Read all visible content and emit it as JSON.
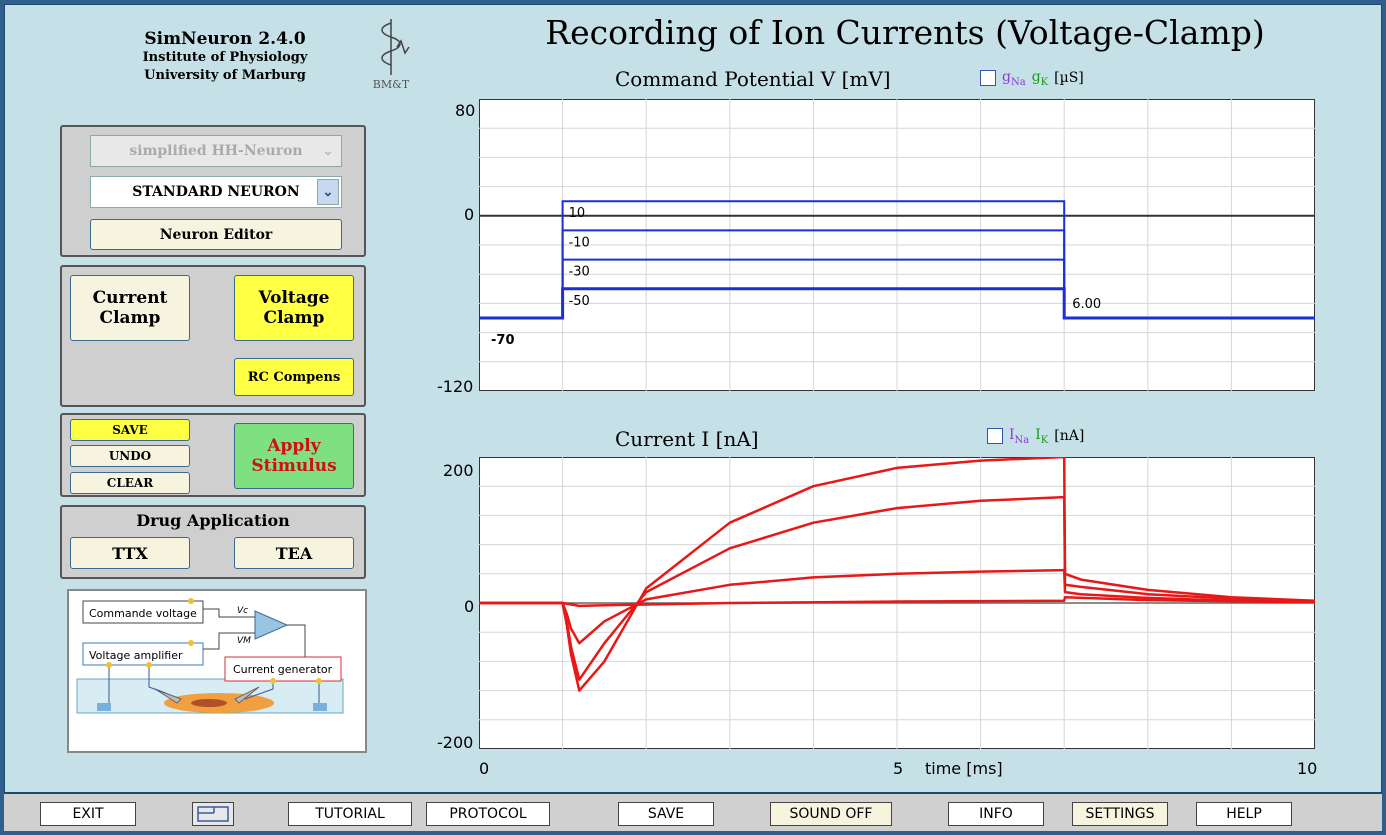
{
  "brand": {
    "name": "SimNeuron 2.4.0",
    "line1": "Institute of Physiology",
    "line2": "University of Marburg",
    "logo_text": "BM&T"
  },
  "title": "Recording of Ion Currents (Voltage-Clamp)",
  "neuron": {
    "model_select": "simplified HH-Neuron",
    "neuron_select": "STANDARD NEURON",
    "editor_label": "Neuron Editor"
  },
  "mode": {
    "current_clamp": "Current Clamp",
    "voltage_clamp": "Voltage Clamp",
    "rc_compens": "RC Compens"
  },
  "actions": {
    "save": "SAVE",
    "undo": "UNDO",
    "clear": "CLEAR",
    "apply": "Apply Stimulus"
  },
  "drugs": {
    "title": "Drug Application",
    "ttx": "TTX",
    "tea": "TEA"
  },
  "circuit": {
    "command": "Commande voltage",
    "amplifier": "Voltage amplifier",
    "generator": "Current generator",
    "vc": "Vc",
    "vm": "VM"
  },
  "voltage_plot": {
    "title": "Command Potential V [mV]",
    "legend_g_na": "gNa",
    "legend_g_k": "gK",
    "legend_unit": "[µS]",
    "yticks": [
      "80",
      "0",
      "-120"
    ],
    "step_labels": [
      "10",
      "-10",
      "-30",
      "-50"
    ],
    "holding_label": "-70",
    "end_label": "6.00"
  },
  "current_plot": {
    "title": "Current I [nA]",
    "legend_i_na": "INa",
    "legend_i_k": "IK",
    "legend_unit": "[nA]",
    "yticks": [
      "200",
      "0",
      "-200"
    ],
    "xticks": [
      "0",
      "5",
      "10"
    ],
    "xlabel": "time [ms]"
  },
  "colors": {
    "voltage_trace": "#1a2fd6",
    "current_trace": "#e81818",
    "na_legend": "#8a3ad6",
    "k_legend": "#1a9a1a"
  },
  "chart_data": [
    {
      "type": "line",
      "title": "Command Potential V [mV]",
      "xlabel": "time [ms]",
      "ylabel": "V [mV]",
      "xlim": [
        0,
        10
      ],
      "ylim": [
        -120,
        80
      ],
      "series": [
        {
          "x": [
            0,
            1,
            1,
            7,
            7,
            10
          ],
          "values": [
            -70,
            -70,
            10,
            10,
            -70,
            -70
          ]
        },
        {
          "x": [
            0,
            1,
            1,
            7,
            7,
            10
          ],
          "values": [
            -70,
            -70,
            -10,
            -10,
            -70,
            -70
          ]
        },
        {
          "x": [
            0,
            1,
            1,
            7,
            7,
            10
          ],
          "values": [
            -70,
            -70,
            -30,
            -30,
            -70,
            -70
          ]
        },
        {
          "x": [
            0,
            1,
            1,
            7,
            7,
            10
          ],
          "values": [
            -70,
            -70,
            -50,
            -50,
            -70,
            -70
          ]
        }
      ]
    },
    {
      "type": "line",
      "title": "Current I [nA]",
      "xlabel": "time [ms]",
      "ylabel": "I [nA]",
      "xlim": [
        0,
        10
      ],
      "ylim": [
        -200,
        200
      ],
      "series": [
        {
          "x": [
            0,
            1,
            1.05,
            1.1,
            1.2,
            1.5,
            2,
            3,
            4,
            5,
            6,
            7,
            7.01,
            7.2,
            8,
            9,
            10
          ],
          "values": [
            0,
            0,
            -30,
            -70,
            -120,
            -80,
            20,
            110,
            160,
            185,
            195,
            200,
            40,
            32,
            18,
            8,
            3
          ]
        },
        {
          "x": [
            0,
            1,
            1.05,
            1.1,
            1.2,
            1.5,
            2,
            3,
            4,
            5,
            6,
            7,
            7.01,
            7.2,
            8,
            9,
            10
          ],
          "values": [
            0,
            0,
            -25,
            -60,
            -105,
            -55,
            15,
            75,
            110,
            130,
            140,
            145,
            25,
            22,
            12,
            6,
            2
          ]
        },
        {
          "x": [
            0,
            1,
            1.05,
            1.1,
            1.2,
            1.5,
            2,
            3,
            4,
            5,
            6,
            7,
            7.01,
            7.2,
            8,
            9,
            10
          ],
          "values": [
            0,
            0,
            -15,
            -35,
            -55,
            -25,
            5,
            25,
            35,
            40,
            43,
            45,
            15,
            12,
            7,
            3,
            1
          ]
        },
        {
          "x": [
            0,
            1,
            1.2,
            1.5,
            2,
            3,
            5,
            7,
            7.01,
            8,
            10
          ],
          "values": [
            0,
            0,
            -4,
            -3,
            -2,
            0,
            2,
            3,
            8,
            4,
            1
          ]
        }
      ]
    }
  ],
  "bottom_bar": [
    "EXIT",
    "TUTORIAL",
    "PROTOCOL",
    "SAVE",
    "SOUND OFF",
    "INFO",
    "SETTINGS",
    "HELP"
  ]
}
